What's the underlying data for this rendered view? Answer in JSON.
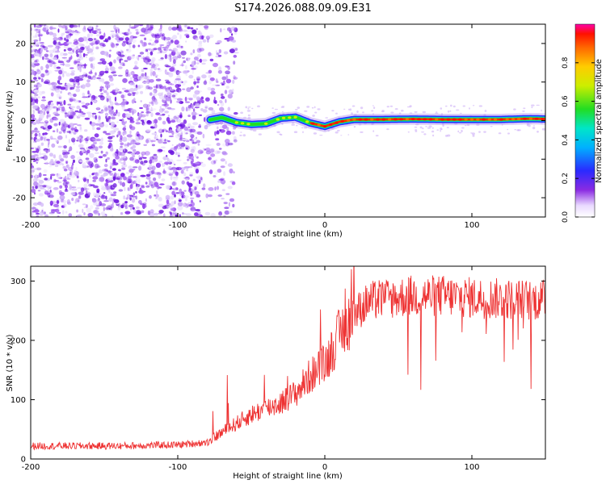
{
  "title": "S174.2026.088.09.09.E31",
  "colors": {
    "signal": "#ee3333",
    "scatter": "#7b22e6",
    "axis": "#000000"
  },
  "chart_data": [
    {
      "type": "heatmap",
      "xlabel": "Height of straight line (km)",
      "ylabel": "Frequency (Hz)",
      "xlim": [
        -200,
        150
      ],
      "ylim": [
        -25,
        25
      ],
      "xticks": [
        -200,
        -100,
        0,
        100
      ],
      "xtick_labels": [
        "-200",
        "-100",
        "0",
        "100"
      ],
      "yticks": [
        -20,
        -10,
        0,
        10,
        20
      ],
      "ytick_labels": [
        "-20",
        "-10",
        "0",
        "10",
        "20"
      ],
      "noise_region": {
        "x_from": -200,
        "x_to": -60
      },
      "ridge": {
        "x": [
          -78,
          -70,
          -60,
          -50,
          -40,
          -30,
          -20,
          -10,
          0,
          10,
          20,
          40,
          60,
          80,
          100,
          120,
          140,
          150
        ],
        "freq": [
          0.2,
          0.8,
          -0.5,
          -1.0,
          -0.8,
          0.6,
          0.9,
          -0.6,
          -1.5,
          -0.3,
          0.3,
          0.3,
          0.4,
          0.3,
          0.3,
          0.3,
          0.5,
          0.4
        ]
      },
      "colorbar": {
        "label": "Normalized spectral amplitude",
        "range": [
          0,
          1
        ],
        "ticks": [
          0.0,
          0.2,
          0.4,
          0.6,
          0.8
        ],
        "tick_labels": [
          "0.0",
          "0.2",
          "0.4",
          "0.6",
          "0.8"
        ]
      }
    },
    {
      "type": "line",
      "xlabel": "Height of straight line (km)",
      "ylabel": "SNR (10 * v/v)",
      "xlim": [
        -200,
        150
      ],
      "ylim": [
        0,
        325
      ],
      "xticks": [
        -200,
        -100,
        0,
        100
      ],
      "xtick_labels": [
        "-200",
        "-100",
        "0",
        "100"
      ],
      "yticks": [
        0,
        100,
        200,
        300
      ],
      "ytick_labels": [
        "0",
        "100",
        "200",
        "300"
      ],
      "series": [
        {
          "name": "SNR",
          "x": [
            -200,
            -180,
            -160,
            -140,
            -120,
            -100,
            -90,
            -80,
            -70,
            -60,
            -50,
            -40,
            -30,
            -20,
            -10,
            0,
            10,
            20,
            30,
            40,
            60,
            80,
            100,
            120,
            140,
            150
          ],
          "values": [
            22,
            22,
            22,
            22,
            23,
            24,
            26,
            28,
            45,
            60,
            75,
            85,
            95,
            110,
            140,
            160,
            210,
            245,
            265,
            270,
            275,
            275,
            272,
            270,
            268,
            268
          ]
        }
      ]
    }
  ]
}
